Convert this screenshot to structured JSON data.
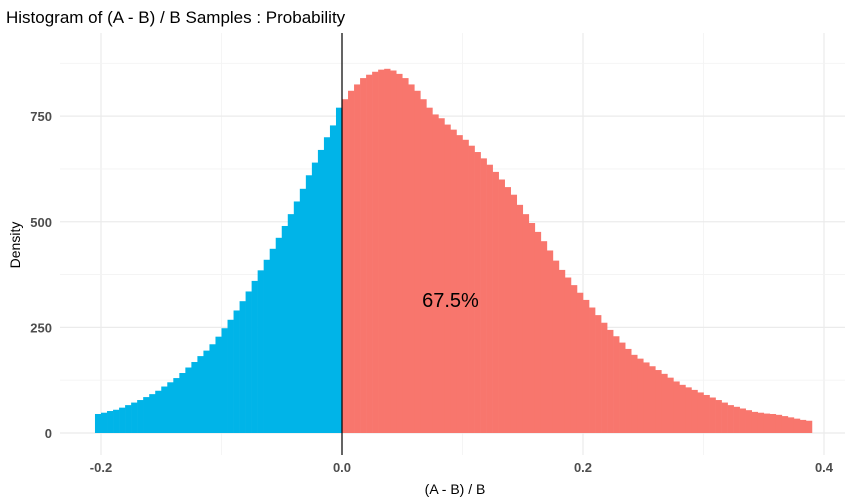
{
  "chart_data": {
    "type": "bar",
    "title": "Histogram of (A - B) / B Samples : Probability",
    "xlabel": "(A - B) / B",
    "ylabel": "Density",
    "xlim": [
      -0.23,
      0.42
    ],
    "ylim": [
      0,
      900
    ],
    "x_ticks": [
      "-0.2",
      "0.0",
      "0.2",
      "0.4"
    ],
    "x_tick_values": [
      -0.2,
      0.0,
      0.2,
      0.4
    ],
    "y_ticks": [
      "0",
      "250",
      "500",
      "750"
    ],
    "y_tick_values": [
      0,
      250,
      500,
      750
    ],
    "grid": true,
    "bin_width": 0.005,
    "bin_start": -0.205,
    "vline_x": 0,
    "colors": {
      "below_zero": "#00b4e8",
      "above_zero": "#f8766d",
      "vline": "#000000"
    },
    "values": [
      45,
      48,
      52,
      55,
      60,
      66,
      72,
      78,
      85,
      92,
      100,
      110,
      120,
      130,
      142,
      155,
      168,
      182,
      195,
      210,
      228,
      248,
      268,
      290,
      312,
      335,
      360,
      385,
      410,
      436,
      462,
      490,
      518,
      548,
      578,
      610,
      640,
      670,
      700,
      728,
      770,
      790,
      810,
      825,
      840,
      848,
      855,
      860,
      862,
      858,
      850,
      840,
      825,
      810,
      790,
      770,
      754,
      745,
      730,
      718,
      705,
      694,
      680,
      665,
      650,
      635,
      618,
      600,
      582,
      564,
      540,
      518,
      497,
      476,
      454,
      432,
      408,
      386,
      368,
      350,
      332,
      315,
      297,
      279,
      261,
      244,
      229,
      214,
      199,
      185,
      176,
      167,
      158,
      149,
      140,
      131,
      122,
      114,
      108,
      102,
      96,
      90,
      84,
      78,
      72,
      66,
      62,
      58,
      54,
      50,
      48,
      46,
      45,
      43,
      40,
      37,
      34,
      31,
      29
    ],
    "annotation": {
      "text": "67.5%",
      "x": 0.09,
      "y": 315
    }
  }
}
